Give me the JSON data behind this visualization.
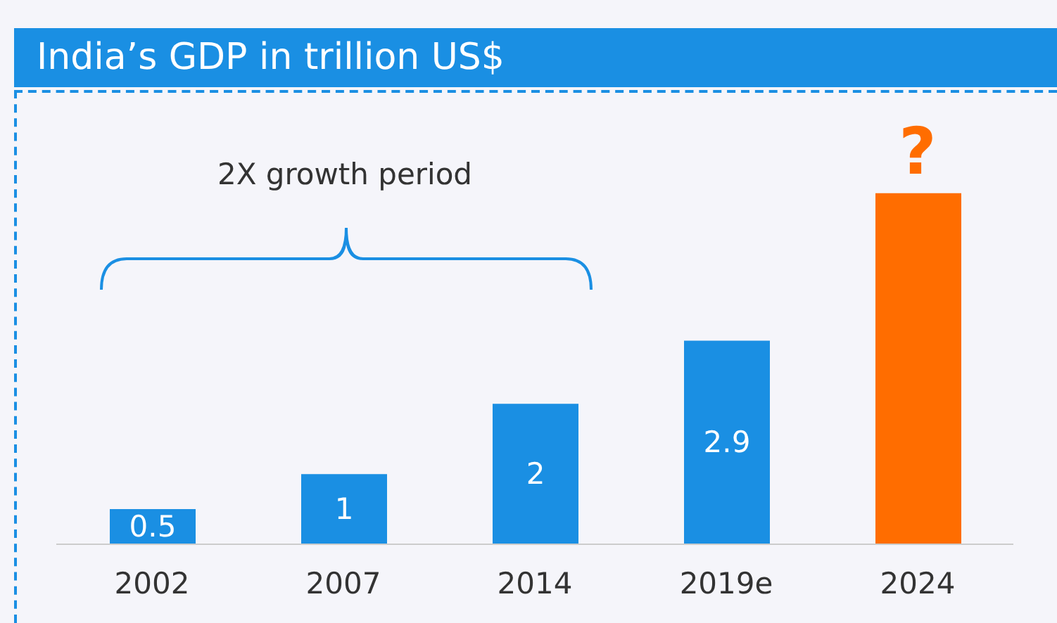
{
  "chart_data": {
    "type": "bar",
    "title": "India’s GDP in trillion US$",
    "categories": [
      "2002",
      "2007",
      "2014",
      "2019e",
      "2024"
    ],
    "values": [
      0.5,
      1,
      2,
      2.9,
      5
    ],
    "colors": [
      "#1a8fe3",
      "#1a8fe3",
      "#1a8fe3",
      "#1a8fe3",
      "#ff6d00"
    ],
    "value_labels": [
      "0.5",
      "1",
      "2",
      "2.9",
      null
    ],
    "annotations": [
      "2X growth period",
      {
        "text": "?",
        "x": "2024",
        "y": 5
      }
    ]
  }
}
